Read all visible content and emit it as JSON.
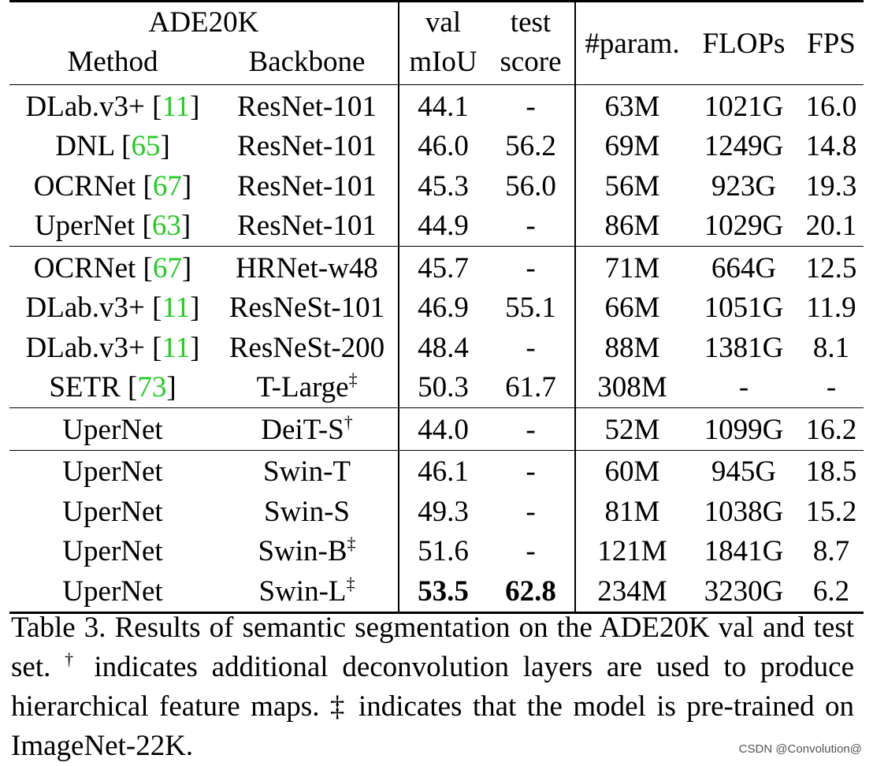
{
  "table": {
    "dataset": "ADE20K",
    "headers": {
      "method": "Method",
      "backbone": "Backbone",
      "val_top": "val",
      "val_bottom": "mIoU",
      "test_top": "test",
      "test_bottom": "score",
      "params": "#param.",
      "flops": "FLOPs",
      "fps": "FPS"
    },
    "groups": [
      [
        {
          "method": "DLab.v3+",
          "ref": "11",
          "backbone": "ResNet-101",
          "mark": "",
          "val": "44.1",
          "test": "-",
          "params": "63M",
          "flops": "1021G",
          "fps": "16.0"
        },
        {
          "method": "DNL",
          "ref": "65",
          "backbone": "ResNet-101",
          "mark": "",
          "val": "46.0",
          "test": "56.2",
          "params": "69M",
          "flops": "1249G",
          "fps": "14.8"
        },
        {
          "method": "OCRNet",
          "ref": "67",
          "backbone": "ResNet-101",
          "mark": "",
          "val": "45.3",
          "test": "56.0",
          "params": "56M",
          "flops": "923G",
          "fps": "19.3"
        },
        {
          "method": "UperNet",
          "ref": "63",
          "backbone": "ResNet-101",
          "mark": "",
          "val": "44.9",
          "test": "-",
          "params": "86M",
          "flops": "1029G",
          "fps": "20.1"
        }
      ],
      [
        {
          "method": "OCRNet",
          "ref": "67",
          "backbone": "HRNet-w48",
          "mark": "",
          "val": "45.7",
          "test": "-",
          "params": "71M",
          "flops": "664G",
          "fps": "12.5"
        },
        {
          "method": "DLab.v3+",
          "ref": "11",
          "backbone": "ResNeSt-101",
          "mark": "",
          "val": "46.9",
          "test": "55.1",
          "params": "66M",
          "flops": "1051G",
          "fps": "11.9"
        },
        {
          "method": "DLab.v3+",
          "ref": "11",
          "backbone": "ResNeSt-200",
          "mark": "",
          "val": "48.4",
          "test": "-",
          "params": "88M",
          "flops": "1381G",
          "fps": "8.1"
        },
        {
          "method": "SETR",
          "ref": "73",
          "backbone": "T-Large",
          "mark": "‡",
          "val": "50.3",
          "test": "61.7",
          "params": "308M",
          "flops": "-",
          "fps": "-"
        }
      ],
      [
        {
          "method": "UperNet",
          "ref": "",
          "backbone": "DeiT-S",
          "mark": "†",
          "val": "44.0",
          "test": "-",
          "params": "52M",
          "flops": "1099G",
          "fps": "16.2"
        }
      ],
      [
        {
          "method": "UperNet",
          "ref": "",
          "backbone": "Swin-T",
          "mark": "",
          "val": "46.1",
          "test": "-",
          "params": "60M",
          "flops": "945G",
          "fps": "18.5"
        },
        {
          "method": "UperNet",
          "ref": "",
          "backbone": "Swin-S",
          "mark": "",
          "val": "49.3",
          "test": "-",
          "params": "81M",
          "flops": "1038G",
          "fps": "15.2"
        },
        {
          "method": "UperNet",
          "ref": "",
          "backbone": "Swin-B",
          "mark": "‡",
          "val": "51.6",
          "test": "-",
          "params": "121M",
          "flops": "1841G",
          "fps": "8.7"
        },
        {
          "method": "UperNet",
          "ref": "",
          "backbone": "Swin-L",
          "mark": "‡",
          "val": "53.5",
          "test": "62.8",
          "params": "234M",
          "flops": "3230G",
          "fps": "6.2",
          "bold": true
        }
      ]
    ]
  },
  "caption": {
    "part1": "Table 3. Results of semantic segmentation on the ADE20K val and test set.",
    "dagger": "†",
    "part2": "indicates additional deconvolution layers are used to produce hierarchical feature maps. ‡ indicates that the model is pre-trained on ImageNet-22K."
  },
  "watermark": "CSDN @Convolution@",
  "colors": {
    "reference_link": "#22cc22"
  }
}
